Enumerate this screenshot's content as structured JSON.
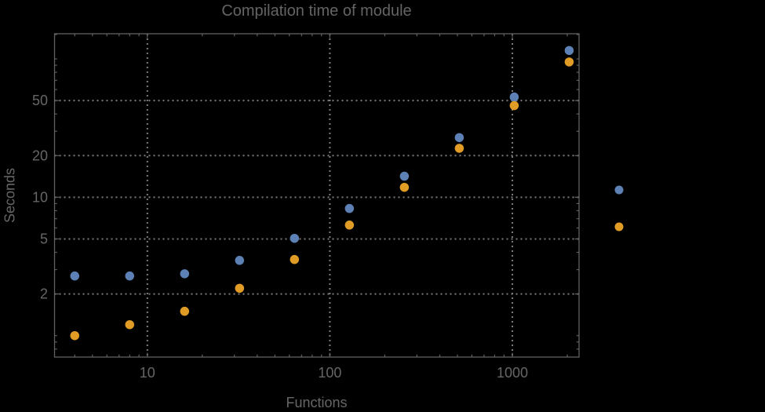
{
  "chart_data": {
    "type": "scatter",
    "title": "Compilation time of module",
    "xlabel": "Functions",
    "ylabel": "Seconds",
    "x_scale": "log",
    "y_scale": "log",
    "xlim": [
      3.1,
      2320
    ],
    "ylim": [
      0.7,
      152
    ],
    "grid": {
      "visible": true,
      "style": "dotted",
      "color": "#7B7B7B",
      "x_values": [
        10,
        100,
        1000
      ],
      "y_values": [
        2,
        5,
        10,
        20,
        50
      ]
    },
    "x": [
      4,
      8,
      16,
      32,
      64,
      128,
      256,
      512,
      1024,
      2048
    ],
    "series": [
      {
        "name": "series-1-blue",
        "color": "#5E81B5",
        "values": [
          2.7,
          2.7,
          2.8,
          3.5,
          5.05,
          8.3,
          14.2,
          27,
          53,
          115
        ]
      },
      {
        "name": "series-2-orange",
        "color": "#E09C24",
        "values": [
          1.0,
          1.2,
          1.5,
          2.2,
          3.55,
          6.3,
          11.8,
          22.6,
          46,
          95
        ]
      }
    ],
    "x_ticks": [
      {
        "value": 10,
        "label": "10"
      },
      {
        "value": 100,
        "label": "100"
      },
      {
        "value": 1000,
        "label": "1000"
      }
    ],
    "y_ticks": [
      {
        "value": 2,
        "label": "2"
      },
      {
        "value": 5,
        "label": "5"
      },
      {
        "value": 10,
        "label": "10"
      },
      {
        "value": 20,
        "label": "20"
      },
      {
        "value": 50,
        "label": "50"
      }
    ],
    "x_minor_ticks": [
      4,
      5,
      6,
      7,
      8,
      9,
      20,
      30,
      40,
      50,
      60,
      70,
      80,
      90,
      200,
      300,
      400,
      500,
      600,
      700,
      800,
      900,
      2000
    ],
    "y_minor_ticks": [
      0.8,
      0.9,
      1,
      3,
      4,
      6,
      7,
      8,
      9,
      30,
      40,
      60,
      70,
      80,
      90,
      100,
      150
    ],
    "frame_color": "#616161",
    "text_color": "#666666",
    "title_color": "#646464",
    "background": "#000000",
    "marker": {
      "shape": "circle",
      "diameter": 11.5
    },
    "legend": {
      "position": "right-center",
      "items": [
        {
          "series": "series-1-blue",
          "color": "#5E81B5",
          "label": ""
        },
        {
          "series": "series-2-orange",
          "color": "#E09C24",
          "label": ""
        }
      ]
    }
  }
}
